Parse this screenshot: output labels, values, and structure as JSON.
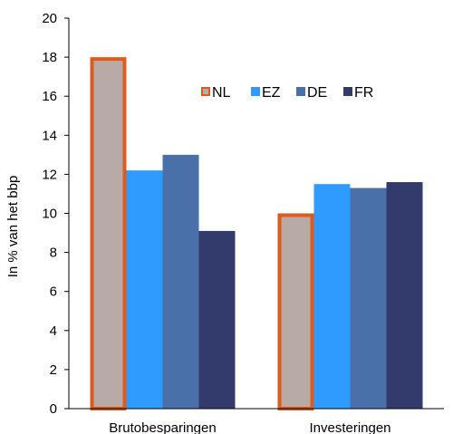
{
  "chart_data": {
    "type": "bar",
    "categories": [
      "Brutobesparingen",
      "Investeringen"
    ],
    "series": [
      {
        "name": "NL",
        "values": [
          18.0,
          10.0
        ],
        "color": "#b8aaa4",
        "stroke": "#e05a1e"
      },
      {
        "name": "EZ",
        "values": [
          12.2,
          11.5
        ],
        "color": "#2f9bff"
      },
      {
        "name": "DE",
        "values": [
          13.0,
          11.3
        ],
        "color": "#4a70aa"
      },
      {
        "name": "FR",
        "values": [
          9.1,
          11.6
        ],
        "color": "#323b6b"
      }
    ],
    "ylabel": "In % van het bbp",
    "ylim": [
      0,
      20
    ],
    "yticks": [
      0,
      2,
      4,
      6,
      8,
      10,
      12,
      14,
      16,
      18,
      20
    ],
    "legend_placement": "top-right",
    "grid": false
  }
}
